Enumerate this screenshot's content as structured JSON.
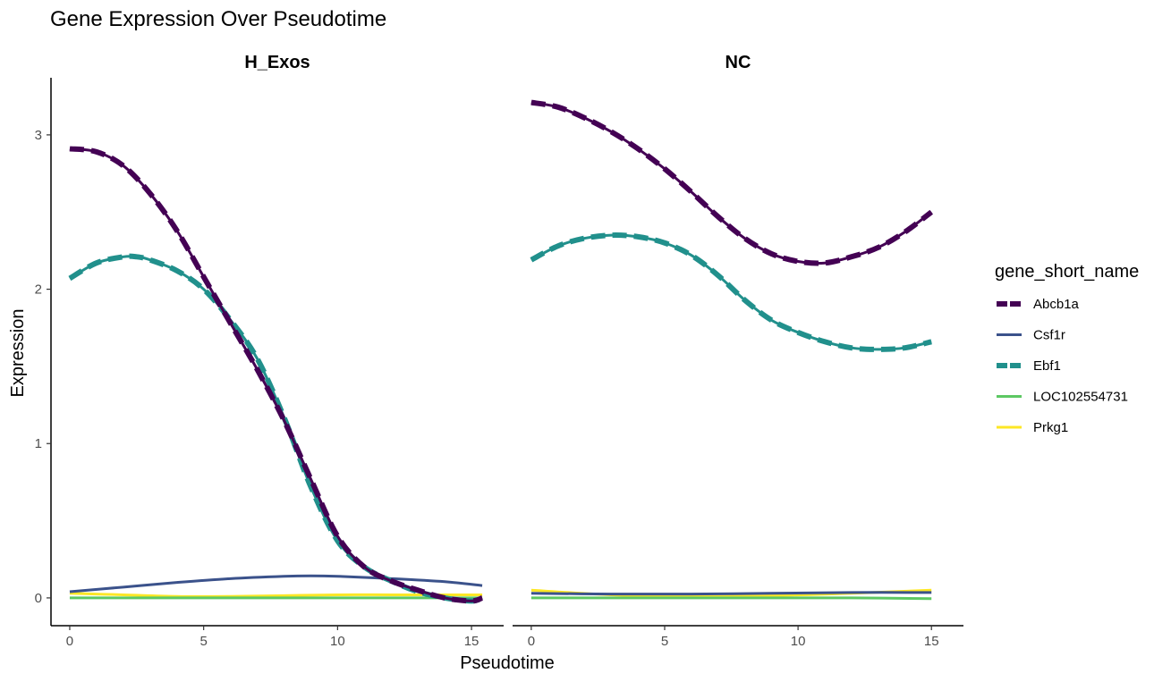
{
  "chart_data": {
    "type": "line",
    "title": "Gene Expression Over Pseudotime",
    "xlabel": "Pseudotime",
    "ylabel": "Expression",
    "xlim": [
      -0.7,
      16.2
    ],
    "ylim": [
      -0.18,
      3.37
    ],
    "x_ticks": [
      0,
      5,
      10,
      15
    ],
    "y_ticks": [
      0,
      1,
      2,
      3
    ],
    "grid": false,
    "legend": {
      "title": "gene_short_name",
      "position": "right",
      "items": [
        {
          "label": "Abcb1a",
          "color": "#440154",
          "dashed": true,
          "width": 6
        },
        {
          "label": "Csf1r",
          "color": "#3B528B",
          "dashed": false,
          "width": 3
        },
        {
          "label": "Ebf1",
          "color": "#21908C",
          "dashed": true,
          "width": 6
        },
        {
          "label": "LOC102554731",
          "color": "#5DC863",
          "dashed": false,
          "width": 3
        },
        {
          "label": "Prkg1",
          "color": "#FDE725",
          "dashed": false,
          "width": 3
        }
      ]
    },
    "panels": [
      {
        "name": "H_Exos",
        "series": [
          {
            "gene": "Prkg1",
            "x": [
              0,
              2,
              4,
              6,
              8,
              10,
              12,
              14,
              15.4
            ],
            "y": [
              0.03,
              0.02,
              0.01,
              0.01,
              0.015,
              0.02,
              0.02,
              0.02,
              0.02
            ]
          },
          {
            "gene": "LOC102554731",
            "x": [
              0,
              3,
              6,
              9,
              12,
              15.4
            ],
            "y": [
              0.0,
              0.0,
              0.0,
              0.0,
              0.0,
              0.0
            ]
          },
          {
            "gene": "Csf1r",
            "x": [
              0,
              2,
              4,
              6,
              8,
              9,
              10,
              12,
              14,
              15.4
            ],
            "y": [
              0.04,
              0.07,
              0.1,
              0.125,
              0.14,
              0.143,
              0.14,
              0.125,
              0.105,
              0.08
            ]
          },
          {
            "gene": "Ebf1",
            "x": [
              0,
              1,
              2,
              2.5,
              3,
              4,
              5,
              6,
              7,
              8,
              9,
              10,
              11,
              12,
              13,
              14,
              15,
              15.4
            ],
            "y": [
              2.07,
              2.17,
              2.21,
              2.21,
              2.19,
              2.12,
              2.0,
              1.8,
              1.55,
              1.17,
              0.72,
              0.37,
              0.2,
              0.11,
              0.04,
              0.0,
              -0.02,
              0.0
            ]
          },
          {
            "gene": "Abcb1a",
            "x": [
              0,
              1,
              2,
              3,
              4,
              5,
              6,
              7,
              8,
              9,
              10,
              11,
              12,
              13,
              14,
              15,
              15.4
            ],
            "y": [
              2.91,
              2.89,
              2.8,
              2.62,
              2.38,
              2.08,
              1.78,
              1.48,
              1.15,
              0.77,
              0.4,
              0.2,
              0.11,
              0.05,
              0.0,
              -0.02,
              0.0
            ]
          }
        ]
      },
      {
        "name": "NC",
        "series": [
          {
            "gene": "Prkg1",
            "x": [
              0,
              3,
              6,
              9,
              12,
              15
            ],
            "y": [
              0.05,
              0.02,
              0.01,
              0.015,
              0.03,
              0.05
            ]
          },
          {
            "gene": "LOC102554731",
            "x": [
              0,
              3,
              6,
              9,
              12,
              15
            ],
            "y": [
              0.0,
              0.0,
              0.0,
              0.0,
              0.0,
              -0.005
            ]
          },
          {
            "gene": "Csf1r",
            "x": [
              0,
              3,
              6,
              9,
              12,
              15
            ],
            "y": [
              0.03,
              0.025,
              0.025,
              0.03,
              0.035,
              0.035
            ]
          },
          {
            "gene": "Ebf1",
            "x": [
              0,
              1,
              2,
              3,
              4,
              5,
              6,
              7,
              8,
              9,
              10,
              11,
              12,
              13,
              14,
              15
            ],
            "y": [
              2.19,
              2.28,
              2.33,
              2.35,
              2.34,
              2.3,
              2.22,
              2.09,
              1.93,
              1.8,
              1.72,
              1.66,
              1.62,
              1.61,
              1.62,
              1.66
            ]
          },
          {
            "gene": "Abcb1a",
            "x": [
              0,
              1,
              2,
              3,
              4,
              5,
              6,
              7,
              8,
              9,
              10,
              11,
              12,
              13,
              14,
              15
            ],
            "y": [
              3.21,
              3.18,
              3.11,
              3.02,
              2.91,
              2.78,
              2.63,
              2.47,
              2.33,
              2.23,
              2.18,
              2.17,
              2.21,
              2.27,
              2.37,
              2.5
            ]
          }
        ]
      }
    ]
  }
}
